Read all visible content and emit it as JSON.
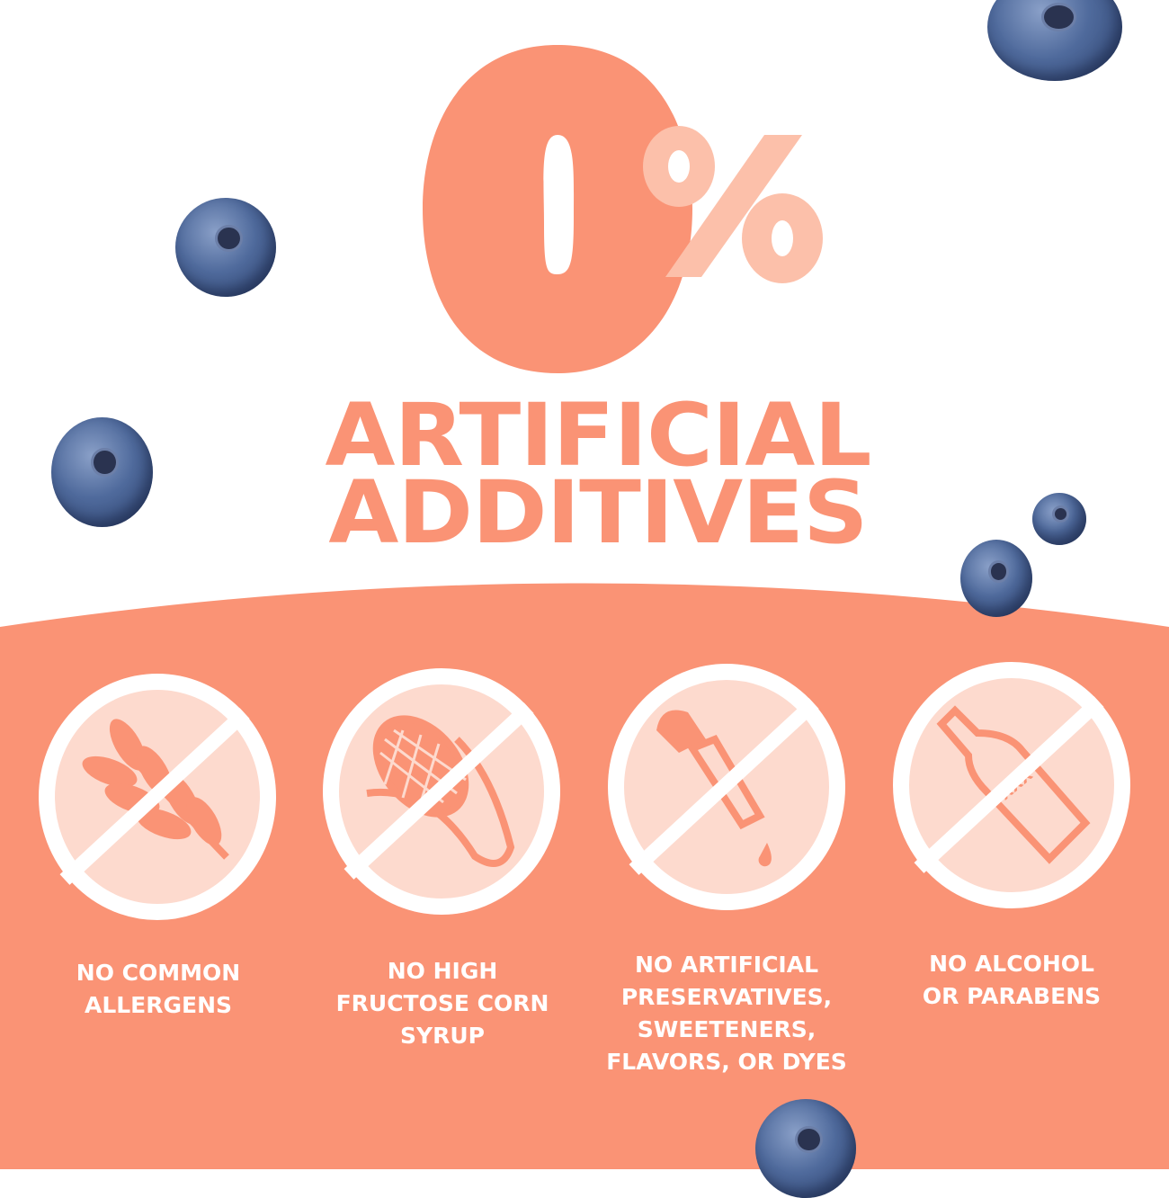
{
  "headline": {
    "number": "0",
    "percent_sign": "%",
    "line1": "ARTIFICIAL",
    "line2": "ADDITIVES"
  },
  "colors": {
    "salmon": "#FA9375",
    "pale": "#FDDACE",
    "percent": "#FCC0AA",
    "white": "#FFFFFF"
  },
  "badges": [
    {
      "icon": "wheat-icon",
      "label_lines": [
        "NO COMMON",
        "ALLERGENS"
      ]
    },
    {
      "icon": "corn-icon",
      "label_lines": [
        "NO HIGH",
        "FRUCTOSE CORN",
        "SYRUP"
      ]
    },
    {
      "icon": "dropper-icon",
      "label_lines": [
        "NO ARTIFICIAL",
        "PRESERVATIVES,",
        "SWEETENERS,",
        "FLAVORS, OR DYES"
      ]
    },
    {
      "icon": "bottle-icon",
      "label_lines": [
        "NO ALCOHOL",
        "OR PARABENS"
      ],
      "bottle_text": "XXX"
    }
  ]
}
